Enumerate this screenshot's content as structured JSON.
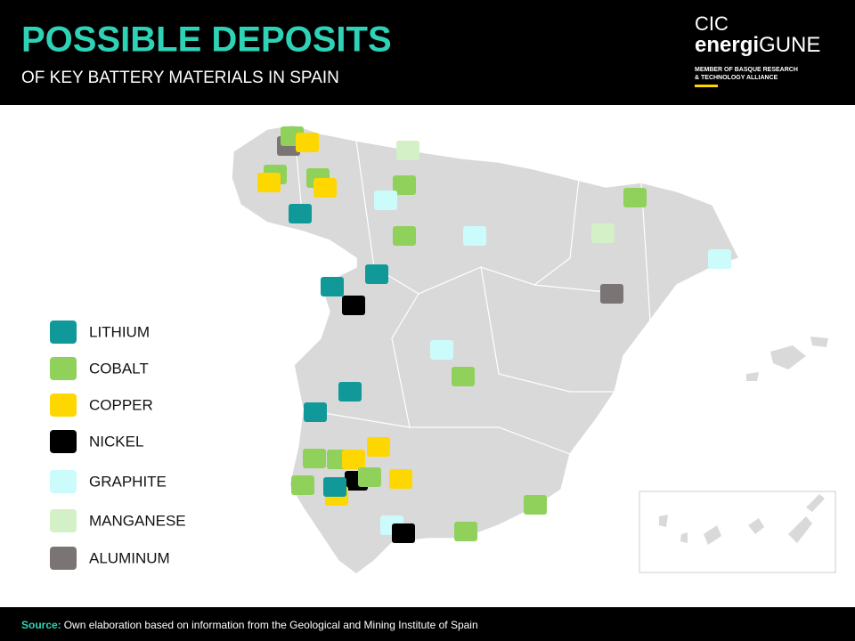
{
  "header": {
    "title": "POSSIBLE DEPOSITS",
    "subtitle": "OF KEY BATTERY MATERIALS IN SPAIN"
  },
  "logo": {
    "line1": "CIC",
    "brand_bold": "energi",
    "brand_light": "GUNE",
    "tagline_1": "MEMBER OF BASQUE RESEARCH",
    "tagline_2": "& TECHNOLOGY ALLIANCE"
  },
  "legend": [
    {
      "label": "LITHIUM",
      "color": "#11999a"
    },
    {
      "label": "COBALT",
      "color": "#8fd15a"
    },
    {
      "label": "COPPER",
      "color": "#ffd700"
    },
    {
      "label": "NICKEL",
      "color": "#000000"
    },
    {
      "label": "GRAPHITE",
      "color": "#ccfbfb"
    },
    {
      "label": "MANGANESE",
      "color": "#d3f0c6"
    },
    {
      "label": "ALUMINUM",
      "color": "#7a7474"
    }
  ],
  "footer": {
    "source_label": "Source:",
    "source_text": "Own elaboration based on information from the Geological and Mining Institute of Spain"
  }
}
